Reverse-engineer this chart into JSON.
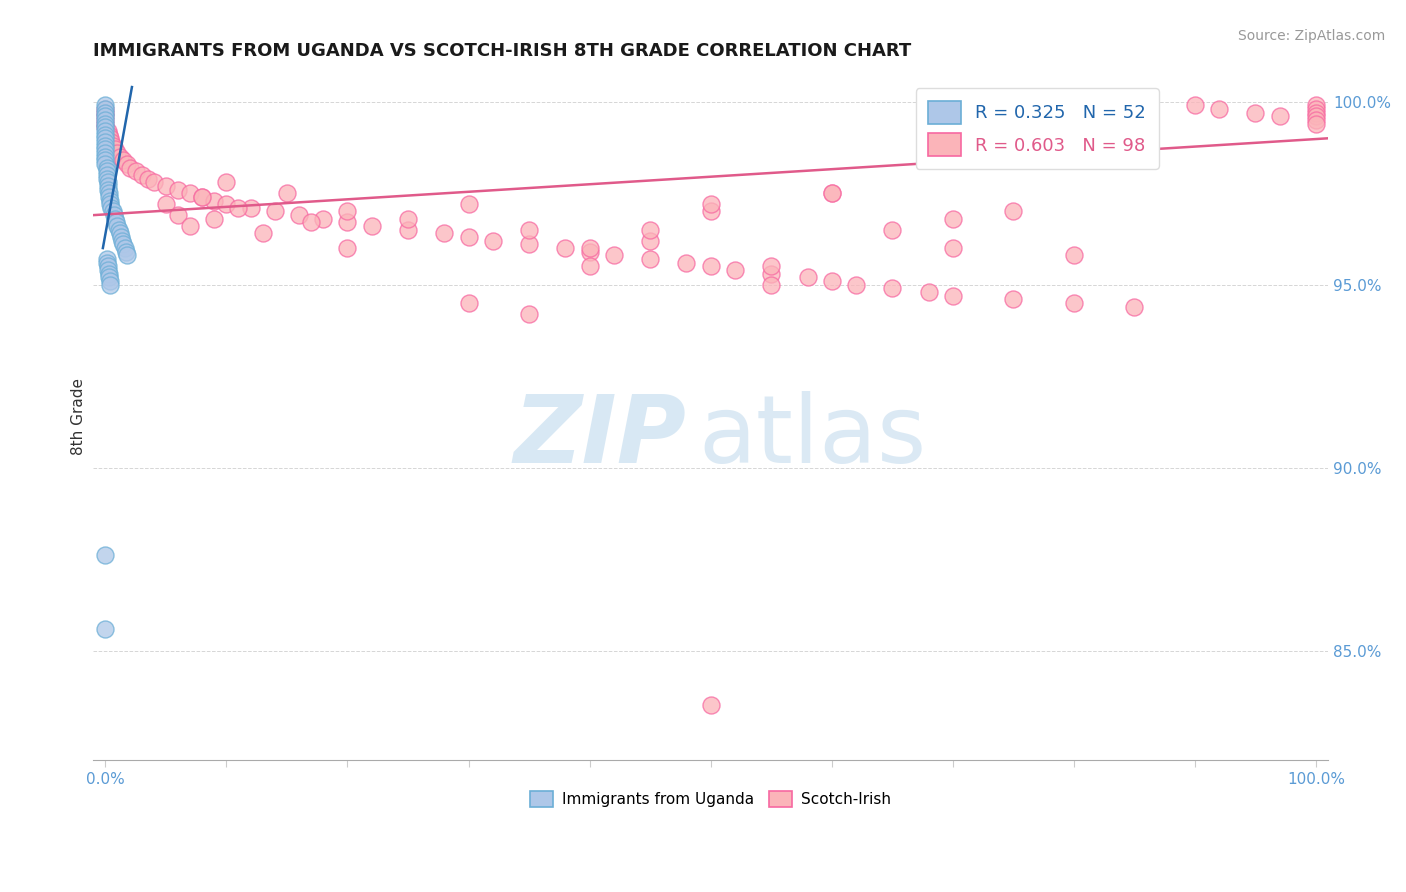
{
  "title": "IMMIGRANTS FROM UGANDA VS SCOTCH-IRISH 8TH GRADE CORRELATION CHART",
  "source_text": "Source: ZipAtlas.com",
  "ylabel": "8th Grade",
  "xlim": [
    0.0,
    1.0
  ],
  "ylim": [
    0.82,
    1.008
  ],
  "ytick_positions": [
    0.85,
    0.9,
    0.95,
    1.0
  ],
  "ytick_labels": [
    "85.0%",
    "90.0%",
    "95.0%",
    "100.0%"
  ],
  "blue_face_color": "#aec7e8",
  "blue_edge_color": "#6baed6",
  "pink_face_color": "#fbb4b9",
  "pink_edge_color": "#f768a1",
  "blue_line_color": "#2166ac",
  "pink_line_color": "#e05a8a",
  "axis_label_color": "#5b9bd5",
  "title_color": "#1a1a1a",
  "source_color": "#999999",
  "watermark_zip_color": "#c8dff0",
  "watermark_atlas_color": "#b8d4ea",
  "blue_x": [
    0.0,
    0.0,
    0.0,
    0.0,
    0.0,
    0.0,
    0.0,
    0.0,
    0.0,
    0.0,
    0.0,
    0.0,
    0.0,
    0.0,
    0.0,
    0.0,
    0.0,
    0.001,
    0.001,
    0.001,
    0.001,
    0.002,
    0.002,
    0.002,
    0.003,
    0.003,
    0.004,
    0.004,
    0.005,
    0.006,
    0.007,
    0.008,
    0.009,
    0.01,
    0.011,
    0.012,
    0.013,
    0.014,
    0.015,
    0.016,
    0.017,
    0.018,
    0.001,
    0.001,
    0.002,
    0.002,
    0.003,
    0.003,
    0.004,
    0.004,
    0.0,
    0.0
  ],
  "blue_y": [
    0.999,
    0.998,
    0.997,
    0.996,
    0.995,
    0.994,
    0.993,
    0.992,
    0.991,
    0.99,
    0.989,
    0.988,
    0.987,
    0.986,
    0.985,
    0.984,
    0.983,
    0.982,
    0.981,
    0.98,
    0.979,
    0.978,
    0.977,
    0.976,
    0.975,
    0.974,
    0.973,
    0.972,
    0.971,
    0.97,
    0.969,
    0.968,
    0.967,
    0.966,
    0.965,
    0.964,
    0.963,
    0.962,
    0.961,
    0.96,
    0.959,
    0.958,
    0.957,
    0.956,
    0.955,
    0.954,
    0.953,
    0.952,
    0.951,
    0.95,
    0.876,
    0.856
  ],
  "pink_x": [
    0.0,
    0.0,
    0.0,
    0.0,
    0.0,
    0.0,
    0.002,
    0.003,
    0.004,
    0.005,
    0.006,
    0.008,
    0.01,
    0.012,
    0.015,
    0.018,
    0.02,
    0.025,
    0.03,
    0.035,
    0.04,
    0.05,
    0.06,
    0.07,
    0.08,
    0.09,
    0.1,
    0.12,
    0.14,
    0.16,
    0.18,
    0.2,
    0.22,
    0.25,
    0.28,
    0.3,
    0.32,
    0.35,
    0.38,
    0.4,
    0.42,
    0.45,
    0.48,
    0.5,
    0.52,
    0.55,
    0.58,
    0.6,
    0.62,
    0.65,
    0.68,
    0.7,
    0.75,
    0.8,
    0.85,
    0.9,
    0.92,
    0.95,
    0.97,
    1.0,
    1.0,
    1.0,
    1.0,
    1.0,
    1.0,
    0.15,
    0.2,
    0.25,
    0.3,
    0.35,
    0.4,
    0.45,
    0.5,
    0.55,
    0.6,
    0.65,
    0.7,
    0.75,
    0.35,
    0.55,
    0.4,
    0.2,
    0.3,
    0.45,
    0.6,
    0.7,
    0.5,
    0.8,
    0.1,
    0.08,
    0.05,
    0.06,
    0.07,
    0.09,
    0.11,
    0.13,
    0.17,
    0.5
  ],
  "pink_y": [
    0.998,
    0.997,
    0.996,
    0.995,
    0.994,
    0.993,
    0.992,
    0.991,
    0.99,
    0.989,
    0.988,
    0.987,
    0.986,
    0.985,
    0.984,
    0.983,
    0.982,
    0.981,
    0.98,
    0.979,
    0.978,
    0.977,
    0.976,
    0.975,
    0.974,
    0.973,
    0.972,
    0.971,
    0.97,
    0.969,
    0.968,
    0.967,
    0.966,
    0.965,
    0.964,
    0.963,
    0.962,
    0.961,
    0.96,
    0.959,
    0.958,
    0.957,
    0.956,
    0.955,
    0.954,
    0.953,
    0.952,
    0.951,
    0.95,
    0.949,
    0.948,
    0.947,
    0.946,
    0.945,
    0.944,
    0.999,
    0.998,
    0.997,
    0.996,
    0.999,
    0.998,
    0.997,
    0.996,
    0.995,
    0.994,
    0.975,
    0.97,
    0.968,
    0.972,
    0.965,
    0.96,
    0.962,
    0.97,
    0.955,
    0.975,
    0.965,
    0.96,
    0.97,
    0.942,
    0.95,
    0.955,
    0.96,
    0.945,
    0.965,
    0.975,
    0.968,
    0.972,
    0.958,
    0.978,
    0.974,
    0.972,
    0.969,
    0.966,
    0.968,
    0.971,
    0.964,
    0.967,
    0.835
  ]
}
